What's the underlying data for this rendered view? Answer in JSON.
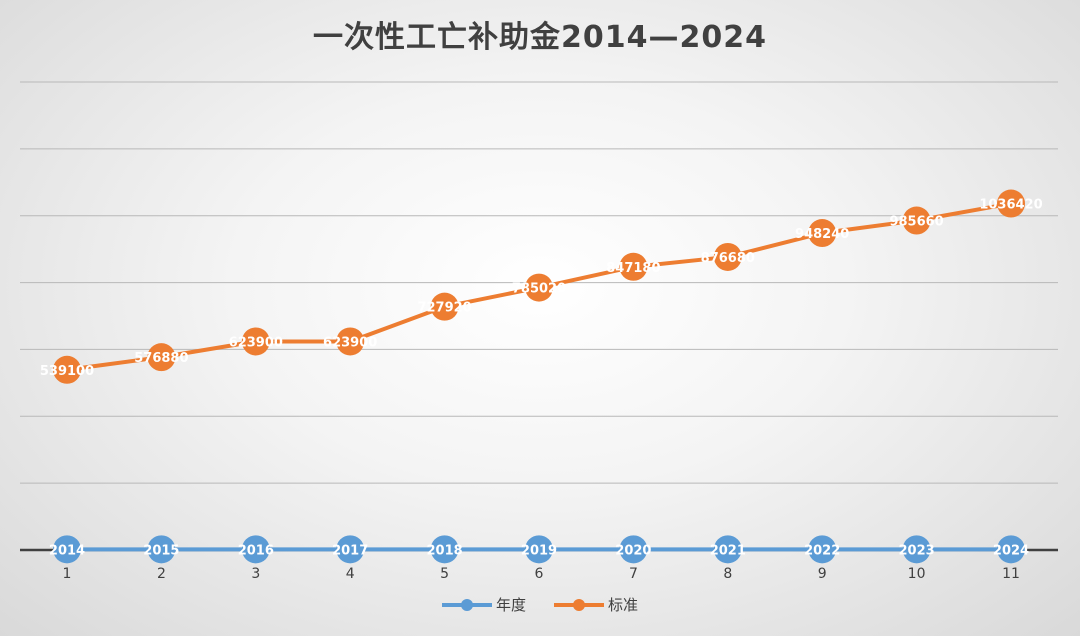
{
  "chart_data": {
    "type": "line",
    "title": "一次性工亡补助金2014—2024",
    "categories": [
      "1",
      "2",
      "3",
      "4",
      "5",
      "6",
      "7",
      "8",
      "9",
      "10",
      "11"
    ],
    "series": [
      {
        "name": "年度",
        "color": "#5b9bd5",
        "values": [
          2014,
          2015,
          2016,
          2017,
          2018,
          2019,
          2020,
          2021,
          2022,
          2023,
          2024
        ]
      },
      {
        "name": "标准",
        "color": "#ed7d31",
        "values": [
          539100,
          576880,
          623900,
          623900,
          727920,
          785020,
          847180,
          876680,
          948240,
          985660,
          1036420
        ]
      }
    ],
    "ylim": [
      0,
      1400000
    ],
    "gridlines": true,
    "legend_position": "bottom",
    "xlabel": "",
    "ylabel": ""
  }
}
